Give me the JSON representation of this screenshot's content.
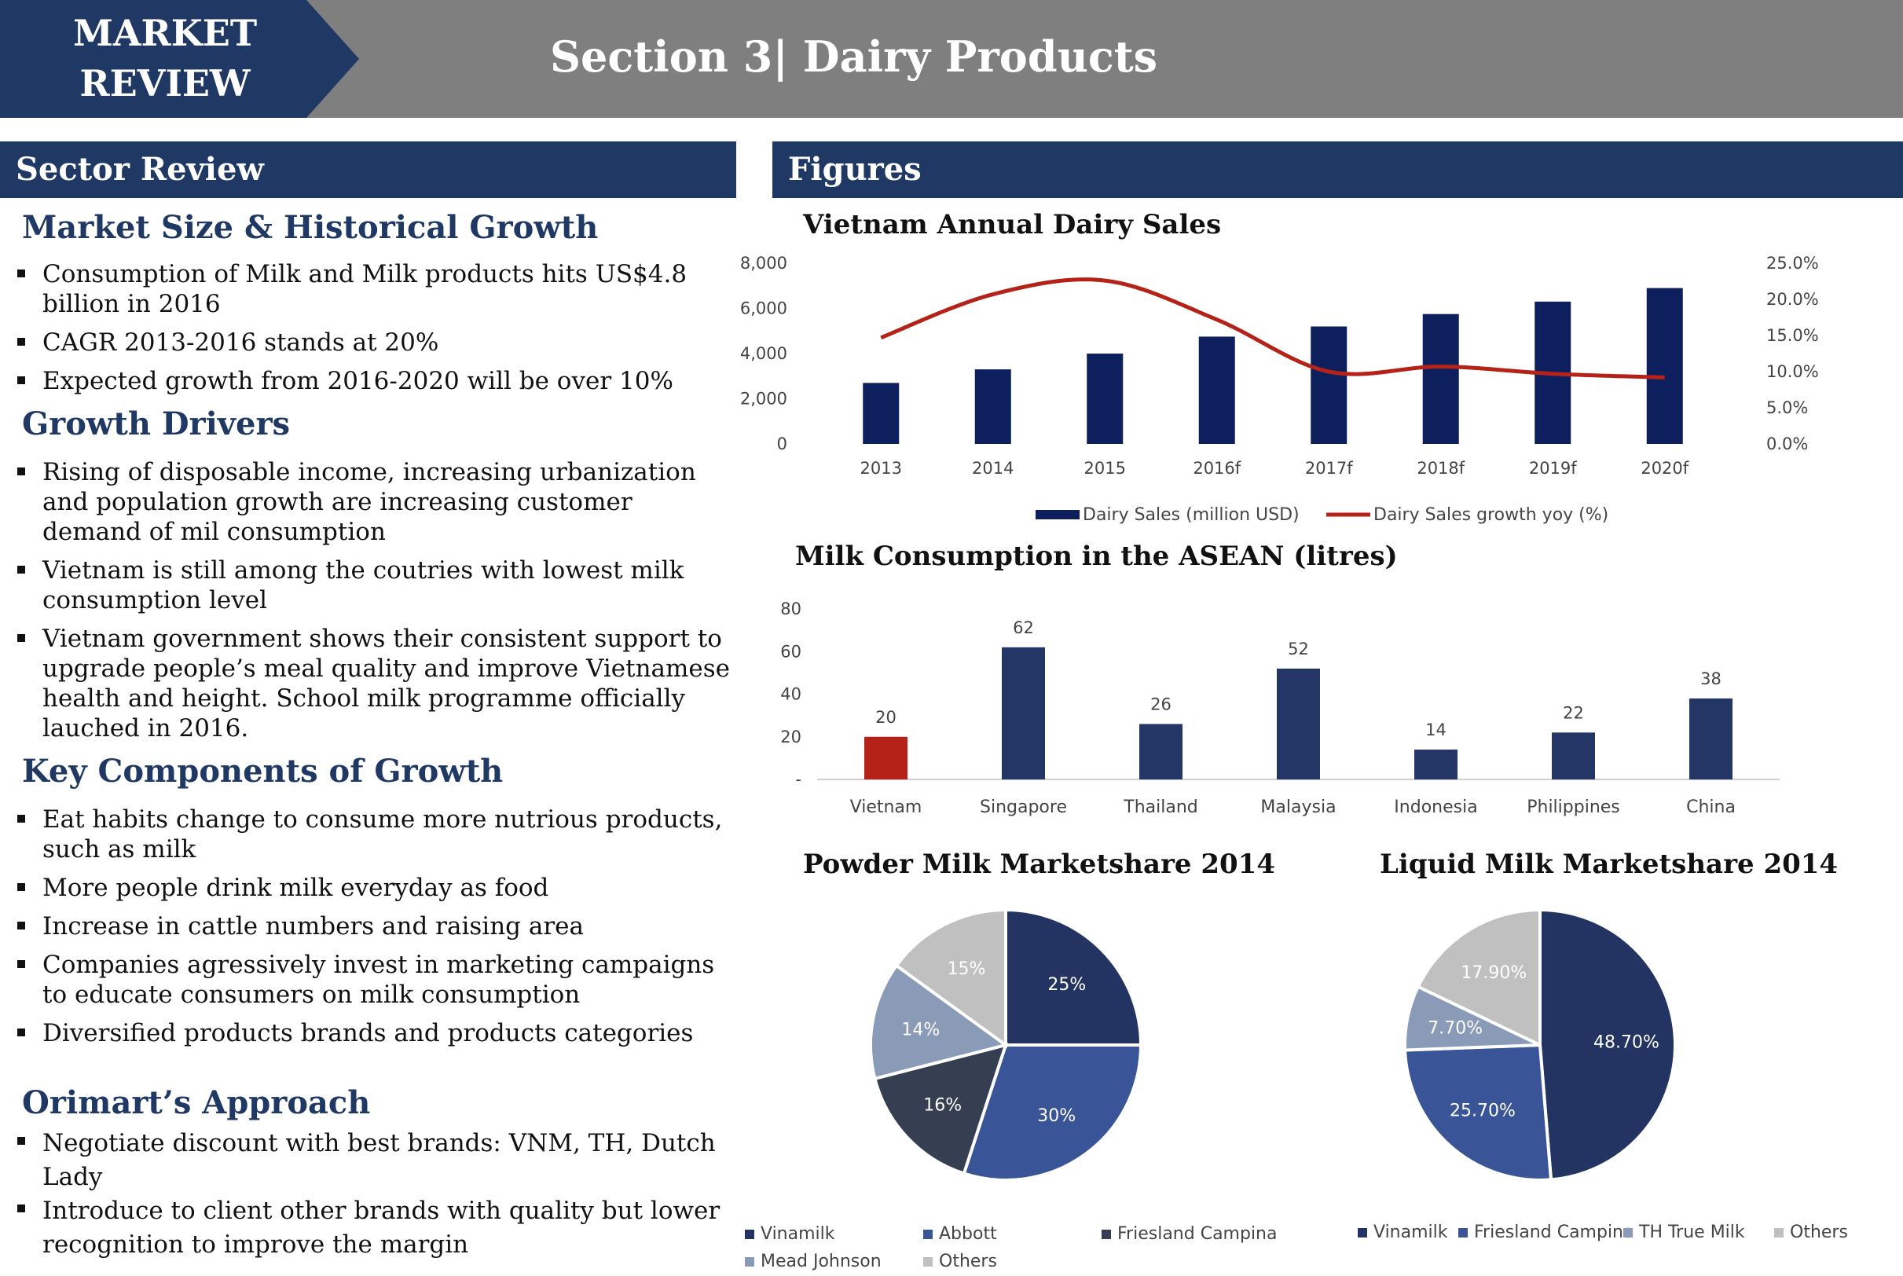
{
  "header": {
    "tag_line1": "MARKET",
    "tag_line2": "REVIEW",
    "title": "Section 3| Dairy Products"
  },
  "left": {
    "bar": "Sector Review",
    "sections": [
      {
        "heading": "Market Size & Historical Growth",
        "bullets": [
          "Consumption of Milk and Milk products hits US$4.8 billion in 2016",
          "CAGR 2013-2016 stands at 20%",
          "Expected growth from 2016-2020 will be over 10%"
        ]
      },
      {
        "heading": "Growth Drivers",
        "bullets": [
          "Rising of disposable income, increasing urbanization and population growth are increasing customer demand of mil consumption",
          "Vietnam is still among the coutries with lowest milk consumption level",
          "Vietnam government shows their consistent support to upgrade people’s meal quality and improve Vietnamese health and height. School milk programme officially lauched in 2016."
        ]
      },
      {
        "heading": "Key Components of Growth",
        "bullets": [
          "Eat habits change to consume more nutrious products, such as milk",
          "More people drink milk everyday as food",
          "Increase in cattle numbers and raising area",
          "Companies agressively invest in marketing campaigns to educate consumers on milk consumption",
          "Diversified products brands and products categories"
        ]
      },
      {
        "heading": "Orimart’s Approach",
        "bullets": [
          "Negotiate discount with best brands: VNM, TH, Dutch Lady",
          "Introduce to client other brands with quality but lower recognition to improve the margin"
        ]
      }
    ]
  },
  "right": {
    "bar": "Figures"
  },
  "colors": {
    "navy": "#1f3864",
    "bar_dark": "#0d1f5c",
    "bar_mid": "#243665",
    "red": "#b52218",
    "header_gray": "#7f7f7f"
  },
  "chart_data": [
    {
      "type": "bar",
      "title": "Vietnam Annual Dairy Sales",
      "categories": [
        "2013",
        "2014",
        "2015",
        "2016f",
        "2017f",
        "2018f",
        "2019f",
        "2020f"
      ],
      "series": [
        {
          "name": "Dairy Sales (million USD)",
          "type": "bar",
          "axis": "left",
          "values": [
            2700,
            3300,
            4000,
            4750,
            5200,
            5750,
            6300,
            6900
          ]
        },
        {
          "name": "Dairy Sales growth yoy (%)",
          "type": "line",
          "axis": "right",
          "values": [
            14.7,
            20.7,
            22.6,
            17.2,
            10.0,
            10.7,
            9.7,
            9.2
          ]
        }
      ],
      "ylim": [
        0,
        8000
      ],
      "yticks": [
        "0",
        "2,000",
        "4,000",
        "6,000",
        "8,000"
      ],
      "y2lim": [
        0,
        25
      ],
      "y2ticks": [
        "0.0%",
        "5.0%",
        "10.0%",
        "15.0%",
        "20.0%",
        "25.0%"
      ],
      "legend": "bottom"
    },
    {
      "type": "bar",
      "title": "Milk Consumption in the ASEAN (litres)",
      "categories": [
        "Vietnam",
        "Singapore",
        "Thailand",
        "Malaysia",
        "Indonesia",
        "Philippines",
        "China"
      ],
      "values": [
        20,
        62,
        26,
        52,
        14,
        22,
        38
      ],
      "ylim": [
        0,
        80
      ],
      "yticks": [
        "-",
        "20",
        "40",
        "60",
        "80"
      ],
      "highlight": "Vietnam"
    },
    {
      "type": "pie",
      "title": "Powder Milk Marketshare 2014",
      "labels": [
        "Vinamilk",
        "Abbott",
        "Friesland Campina",
        "Mead Johnson",
        "Others"
      ],
      "values": [
        25,
        30,
        16,
        14,
        15
      ],
      "value_labels": [
        "25%",
        "30%",
        "16%",
        "14%",
        "15%"
      ],
      "colors": [
        "#233462",
        "#3a5597",
        "#363f52",
        "#8a9bb8",
        "#c0c0c0"
      ],
      "legend": "bottom"
    },
    {
      "type": "pie",
      "title": "Liquid Milk Marketshare 2014",
      "labels": [
        "Vinamilk",
        "Friesland Campina",
        "TH True Milk",
        "Others"
      ],
      "values": [
        48.7,
        25.7,
        7.7,
        17.9
      ],
      "value_labels": [
        "48.70%",
        "25.70%",
        "7.70%",
        "17.90%"
      ],
      "colors": [
        "#233462",
        "#3a5597",
        "#8a9bb8",
        "#c0c0c0"
      ],
      "legend": "bottom"
    }
  ]
}
